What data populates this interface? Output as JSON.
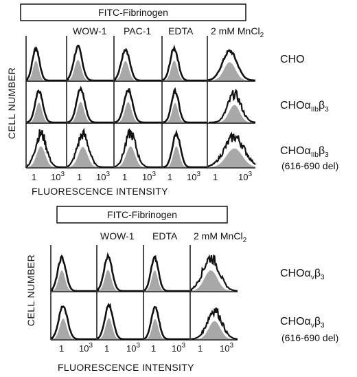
{
  "panels": [
    {
      "id": "top",
      "header": "FITC-Fibrinogen",
      "columns": [
        "WOW-1",
        "PAC-1",
        "EDTA",
        "2 mM MnCl",
        "2"
      ],
      "rows": [
        {
          "name": "CHO",
          "sub": "",
          "suffix": "",
          "note": ""
        },
        {
          "name": "CHOα",
          "sub": "IIb",
          "suffix": "β",
          "sub2": "3",
          "note": ""
        },
        {
          "name": "CHOα",
          "sub": "IIb",
          "suffix": "β",
          "sub2": "3",
          "note": "(616-690 del)"
        }
      ],
      "y_label": "CELL NUMBER",
      "x_label": "FLUORESCENCE INTENSITY",
      "x_ticks": [
        "1",
        "10",
        "3"
      ]
    },
    {
      "id": "bottom",
      "header": "FITC-Fibrinogen",
      "columns": [
        "WOW-1",
        "EDTA",
        "2 mM MnCl",
        "2"
      ],
      "rows": [
        {
          "name": "CHOα",
          "sub": "v",
          "suffix": "β",
          "sub2": "3",
          "note": ""
        },
        {
          "name": "CHOα",
          "sub": "v",
          "suffix": "β",
          "sub2": "3",
          "note": "(616-690 del)"
        }
      ],
      "y_label": "CELL NUMBER",
      "x_label": "FLUORESCENCE INTENSITY",
      "x_ticks": [
        "1",
        "10",
        "3"
      ]
    }
  ],
  "colors": {
    "ink": "#111111",
    "fill": "#a8a8a8"
  }
}
